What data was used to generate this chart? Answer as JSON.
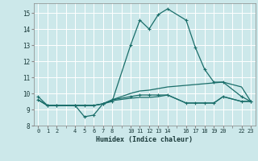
{
  "title": "",
  "xlabel": "Humidex (Indice chaleur)",
  "xlim": [
    -0.5,
    23.5
  ],
  "ylim": [
    8,
    15.6
  ],
  "background_color": "#cce8ea",
  "grid_color": "#ffffff",
  "line_color": "#1a6e6a",
  "xticks": [
    0,
    1,
    2,
    4,
    5,
    6,
    7,
    8,
    10,
    11,
    12,
    13,
    14,
    16,
    17,
    18,
    19,
    20,
    22,
    23
  ],
  "yticks": [
    8,
    9,
    10,
    11,
    12,
    13,
    14,
    15
  ],
  "line1_x": [
    0,
    1,
    2,
    4,
    5,
    6,
    7,
    8,
    10,
    11,
    12,
    13,
    14,
    16,
    17,
    18,
    19,
    20,
    22,
    23
  ],
  "line1_y": [
    9.8,
    9.25,
    9.25,
    9.25,
    8.55,
    8.65,
    9.35,
    9.5,
    13.0,
    14.55,
    14.0,
    14.9,
    15.25,
    14.55,
    12.85,
    11.5,
    10.7,
    10.7,
    9.8,
    9.5
  ],
  "line2_x": [
    0,
    1,
    2,
    4,
    5,
    6,
    7,
    8,
    10,
    11,
    12,
    13,
    14,
    16,
    17,
    18,
    19,
    20,
    22,
    23
  ],
  "line2_y": [
    9.6,
    9.25,
    9.25,
    9.25,
    9.25,
    9.25,
    9.35,
    9.6,
    9.8,
    9.9,
    9.9,
    9.9,
    9.9,
    9.4,
    9.4,
    9.4,
    9.4,
    9.8,
    9.5,
    9.5
  ],
  "line3_x": [
    0,
    1,
    2,
    4,
    5,
    6,
    7,
    8,
    10,
    11,
    12,
    13,
    14,
    16,
    17,
    18,
    19,
    20,
    22,
    23
  ],
  "line3_y": [
    9.6,
    9.25,
    9.25,
    9.25,
    9.25,
    9.25,
    9.35,
    9.6,
    10.0,
    10.15,
    10.2,
    10.3,
    10.4,
    10.5,
    10.55,
    10.6,
    10.65,
    10.7,
    10.4,
    9.5
  ],
  "line4_x": [
    0,
    1,
    2,
    4,
    5,
    6,
    7,
    8,
    10,
    11,
    12,
    13,
    14,
    16,
    17,
    18,
    19,
    20,
    22,
    23
  ],
  "line4_y": [
    9.6,
    9.25,
    9.25,
    9.25,
    9.25,
    9.25,
    9.35,
    9.55,
    9.7,
    9.75,
    9.75,
    9.8,
    9.9,
    9.4,
    9.4,
    9.4,
    9.4,
    9.8,
    9.5,
    9.5
  ]
}
